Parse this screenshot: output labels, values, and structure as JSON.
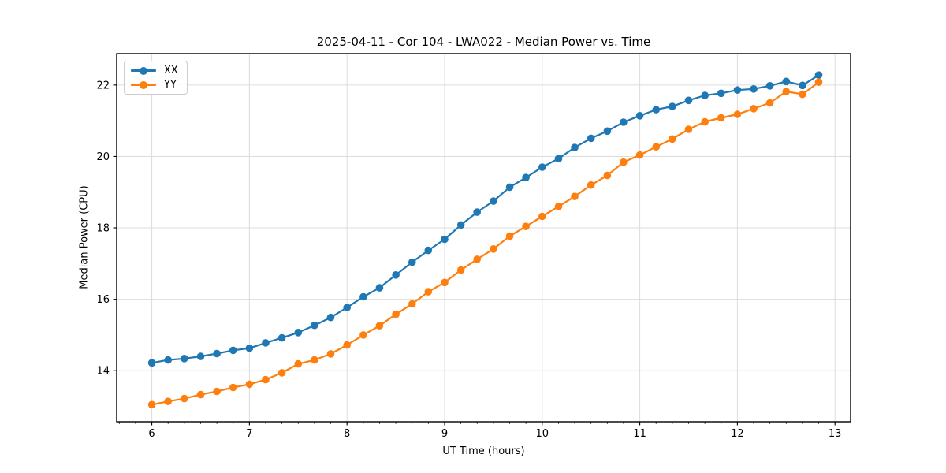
{
  "figure": {
    "background": "#ffffff",
    "spine_color": "#000000",
    "grid_color": "#dcdcdc",
    "tick_color": "#000000"
  },
  "chart_data": {
    "type": "line",
    "title": "2025-04-11 - Cor 104 - LWA022 - Median Power vs. Time",
    "xlabel": "UT Time (hours)",
    "ylabel": "Median Power (CPU)",
    "xlim": [
      5.64,
      13.16
    ],
    "ylim": [
      12.57,
      22.88
    ],
    "x_ticks": [
      6,
      7,
      8,
      9,
      10,
      11,
      12,
      13
    ],
    "y_ticks": [
      14,
      16,
      18,
      20,
      22
    ],
    "x_minor_tick_step": 0.166667,
    "grid": true,
    "legend_position": "upper-left",
    "marker": "circle",
    "x": [
      6.0,
      6.167,
      6.333,
      6.5,
      6.667,
      6.833,
      7.0,
      7.167,
      7.333,
      7.5,
      7.667,
      7.833,
      8.0,
      8.167,
      8.333,
      8.5,
      8.667,
      8.833,
      9.0,
      9.167,
      9.333,
      9.5,
      9.667,
      9.833,
      10.0,
      10.167,
      10.333,
      10.5,
      10.667,
      10.833,
      11.0,
      11.167,
      11.333,
      11.5,
      11.667,
      11.833,
      12.0,
      12.167,
      12.333,
      12.5,
      12.667,
      12.833
    ],
    "series": [
      {
        "name": "XX",
        "color": "#1f77b4",
        "values": [
          14.22,
          14.3,
          14.34,
          14.4,
          14.48,
          14.57,
          14.63,
          14.78,
          14.92,
          15.07,
          15.27,
          15.49,
          15.77,
          16.07,
          16.32,
          16.68,
          17.04,
          17.37,
          17.68,
          18.08,
          18.44,
          18.75,
          19.14,
          19.41,
          19.7,
          19.94,
          20.25,
          20.51,
          20.71,
          20.96,
          21.14,
          21.31,
          21.4,
          21.57,
          21.71,
          21.77,
          21.86,
          21.89,
          21.98,
          22.1,
          21.99,
          22.28
        ]
      },
      {
        "name": "YY",
        "color": "#ff7f0e",
        "values": [
          13.05,
          13.14,
          13.22,
          13.33,
          13.42,
          13.53,
          13.62,
          13.75,
          13.94,
          14.19,
          14.3,
          14.47,
          14.72,
          15.0,
          15.26,
          15.58,
          15.87,
          16.21,
          16.47,
          16.82,
          17.12,
          17.41,
          17.77,
          18.04,
          18.32,
          18.6,
          18.88,
          19.2,
          19.47,
          19.84,
          20.04,
          20.27,
          20.49,
          20.76,
          20.97,
          21.08,
          21.18,
          21.34,
          21.5,
          21.82,
          21.74,
          22.08
        ]
      }
    ]
  }
}
